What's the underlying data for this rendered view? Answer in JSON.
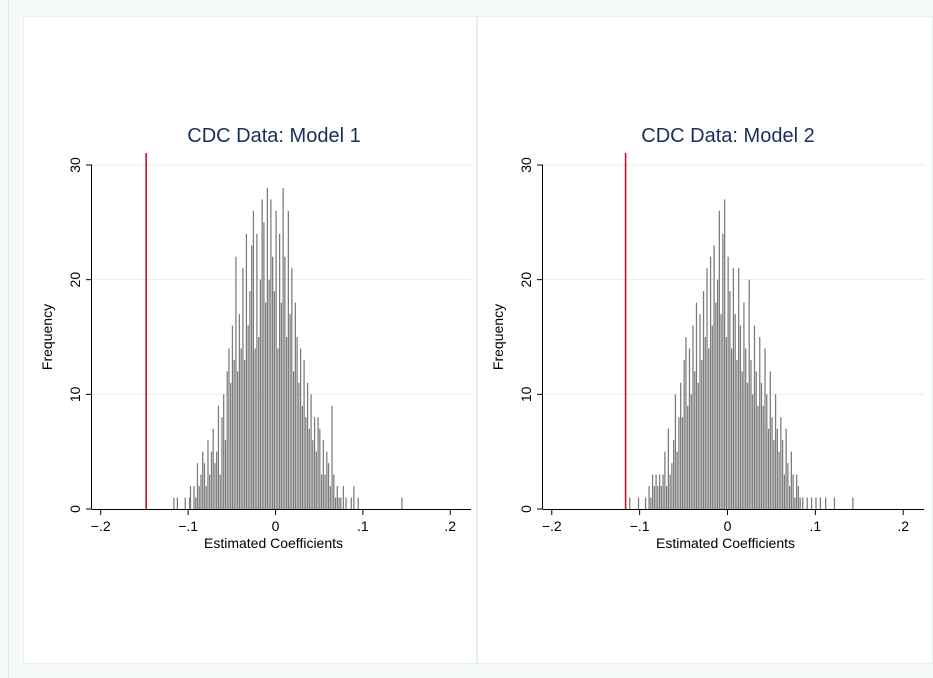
{
  "chart_data": [
    {
      "type": "bar",
      "title": "CDC Data: Model 1",
      "xlabel": "Estimated Coefficients",
      "ylabel": "Frequency",
      "xlim": [
        -0.21,
        0.21
      ],
      "ylim": [
        0,
        30
      ],
      "xticks": [
        -0.2,
        -0.1,
        0,
        0.1,
        0.2
      ],
      "xtick_labels": [
        "−.2",
        "−.1",
        "0",
        ".1",
        ".2"
      ],
      "yticks": [
        0,
        10,
        20,
        30
      ],
      "ytick_labels": [
        "0",
        "10",
        "20",
        "30"
      ],
      "grid": "horizontal",
      "reference_line": {
        "x": -0.148,
        "color": "#c8102e"
      },
      "bin_width": 0.002,
      "bins": [
        [
          -0.116,
          1
        ],
        [
          -0.112,
          1
        ],
        [
          -0.103,
          1
        ],
        [
          -0.098,
          1
        ],
        [
          -0.097,
          2
        ],
        [
          -0.093,
          2
        ],
        [
          -0.091,
          1
        ],
        [
          -0.089,
          4
        ],
        [
          -0.087,
          2
        ],
        [
          -0.085,
          3
        ],
        [
          -0.083,
          5
        ],
        [
          -0.081,
          4
        ],
        [
          -0.079,
          2
        ],
        [
          -0.077,
          6
        ],
        [
          -0.075,
          3
        ],
        [
          -0.073,
          5
        ],
        [
          -0.071,
          7
        ],
        [
          -0.069,
          4
        ],
        [
          -0.067,
          5
        ],
        [
          -0.065,
          9
        ],
        [
          -0.063,
          3
        ],
        [
          -0.061,
          8
        ],
        [
          -0.059,
          10
        ],
        [
          -0.057,
          6
        ],
        [
          -0.055,
          12
        ],
        [
          -0.053,
          14
        ],
        [
          -0.051,
          11
        ],
        [
          -0.049,
          16
        ],
        [
          -0.047,
          13
        ],
        [
          -0.045,
          22
        ],
        [
          -0.043,
          12
        ],
        [
          -0.041,
          17
        ],
        [
          -0.039,
          14
        ],
        [
          -0.037,
          21
        ],
        [
          -0.035,
          13
        ],
        [
          -0.033,
          24
        ],
        [
          -0.031,
          16
        ],
        [
          -0.029,
          19
        ],
        [
          -0.027,
          23
        ],
        [
          -0.025,
          26
        ],
        [
          -0.023,
          14
        ],
        [
          -0.021,
          24
        ],
        [
          -0.019,
          15
        ],
        [
          -0.017,
          20
        ],
        [
          -0.015,
          27
        ],
        [
          -0.013,
          25
        ],
        [
          -0.011,
          18
        ],
        [
          -0.009,
          28
        ],
        [
          -0.007,
          20
        ],
        [
          -0.005,
          27
        ],
        [
          -0.003,
          22
        ],
        [
          -0.001,
          19
        ],
        [
          0.001,
          26
        ],
        [
          0.003,
          14
        ],
        [
          0.005,
          24
        ],
        [
          0.007,
          18
        ],
        [
          0.009,
          28
        ],
        [
          0.011,
          22
        ],
        [
          0.013,
          15
        ],
        [
          0.015,
          26
        ],
        [
          0.017,
          17
        ],
        [
          0.019,
          21
        ],
        [
          0.021,
          12
        ],
        [
          0.023,
          18
        ],
        [
          0.025,
          15
        ],
        [
          0.027,
          11
        ],
        [
          0.029,
          14
        ],
        [
          0.031,
          9
        ],
        [
          0.033,
          13
        ],
        [
          0.035,
          8
        ],
        [
          0.037,
          11
        ],
        [
          0.039,
          7
        ],
        [
          0.041,
          10
        ],
        [
          0.043,
          6
        ],
        [
          0.045,
          8
        ],
        [
          0.047,
          5
        ],
        [
          0.049,
          8
        ],
        [
          0.051,
          7
        ],
        [
          0.053,
          3
        ],
        [
          0.055,
          6
        ],
        [
          0.057,
          3
        ],
        [
          0.059,
          5
        ],
        [
          0.061,
          4
        ],
        [
          0.063,
          2
        ],
        [
          0.065,
          9
        ],
        [
          0.067,
          3
        ],
        [
          0.069,
          1
        ],
        [
          0.071,
          2
        ],
        [
          0.073,
          1
        ],
        [
          0.075,
          1
        ],
        [
          0.078,
          2
        ],
        [
          0.081,
          1
        ],
        [
          0.087,
          1
        ],
        [
          0.09,
          2
        ],
        [
          0.095,
          1
        ],
        [
          0.145,
          1
        ]
      ]
    },
    {
      "type": "bar",
      "title": "CDC Data: Model 2",
      "xlabel": "Estimated Coefficients",
      "ylabel": "Frequency",
      "xlim": [
        -0.21,
        0.21
      ],
      "ylim": [
        0,
        30
      ],
      "xticks": [
        -0.2,
        -0.1,
        0,
        0.1,
        0.2
      ],
      "xtick_labels": [
        "−.2",
        "−.1",
        "0",
        ".1",
        ".2"
      ],
      "yticks": [
        0,
        10,
        20,
        30
      ],
      "ytick_labels": [
        "0",
        "10",
        "20",
        "30"
      ],
      "grid": "horizontal",
      "reference_line": {
        "x": -0.116,
        "color": "#c8102e"
      },
      "bin_width": 0.002,
      "bins": [
        [
          -0.111,
          1
        ],
        [
          -0.101,
          1
        ],
        [
          -0.093,
          1
        ],
        [
          -0.089,
          2
        ],
        [
          -0.087,
          1
        ],
        [
          -0.085,
          3
        ],
        [
          -0.083,
          2
        ],
        [
          -0.081,
          3
        ],
        [
          -0.079,
          2
        ],
        [
          -0.077,
          3
        ],
        [
          -0.075,
          2
        ],
        [
          -0.073,
          3
        ],
        [
          -0.071,
          5
        ],
        [
          -0.069,
          2
        ],
        [
          -0.067,
          7
        ],
        [
          -0.065,
          3
        ],
        [
          -0.063,
          4
        ],
        [
          -0.061,
          6
        ],
        [
          -0.059,
          10
        ],
        [
          -0.057,
          5
        ],
        [
          -0.055,
          8
        ],
        [
          -0.053,
          11
        ],
        [
          -0.051,
          8
        ],
        [
          -0.049,
          13
        ],
        [
          -0.047,
          15
        ],
        [
          -0.045,
          9
        ],
        [
          -0.043,
          14
        ],
        [
          -0.041,
          10
        ],
        [
          -0.039,
          16
        ],
        [
          -0.037,
          12
        ],
        [
          -0.035,
          18
        ],
        [
          -0.033,
          11
        ],
        [
          -0.031,
          17
        ],
        [
          -0.029,
          13
        ],
        [
          -0.027,
          19
        ],
        [
          -0.025,
          15
        ],
        [
          -0.023,
          21
        ],
        [
          -0.021,
          14
        ],
        [
          -0.019,
          22
        ],
        [
          -0.017,
          16
        ],
        [
          -0.015,
          23
        ],
        [
          -0.013,
          18
        ],
        [
          -0.011,
          20
        ],
        [
          -0.009,
          26
        ],
        [
          -0.007,
          17
        ],
        [
          -0.005,
          24
        ],
        [
          -0.003,
          27
        ],
        [
          -0.001,
          15
        ],
        [
          0.001,
          22
        ],
        [
          0.003,
          19
        ],
        [
          0.005,
          14
        ],
        [
          0.007,
          21
        ],
        [
          0.009,
          17
        ],
        [
          0.011,
          13
        ],
        [
          0.013,
          21
        ],
        [
          0.015,
          16
        ],
        [
          0.017,
          12
        ],
        [
          0.019,
          18
        ],
        [
          0.021,
          14
        ],
        [
          0.023,
          11
        ],
        [
          0.025,
          20
        ],
        [
          0.027,
          13
        ],
        [
          0.029,
          10
        ],
        [
          0.031,
          16
        ],
        [
          0.033,
          12
        ],
        [
          0.035,
          9
        ],
        [
          0.037,
          15
        ],
        [
          0.039,
          11
        ],
        [
          0.041,
          9
        ],
        [
          0.043,
          14
        ],
        [
          0.045,
          10
        ],
        [
          0.047,
          7
        ],
        [
          0.049,
          12
        ],
        [
          0.051,
          8
        ],
        [
          0.053,
          6
        ],
        [
          0.055,
          10
        ],
        [
          0.057,
          7
        ],
        [
          0.059,
          5
        ],
        [
          0.061,
          8
        ],
        [
          0.063,
          6
        ],
        [
          0.065,
          3
        ],
        [
          0.067,
          7
        ],
        [
          0.069,
          4
        ],
        [
          0.071,
          2
        ],
        [
          0.073,
          5
        ],
        [
          0.075,
          3
        ],
        [
          0.077,
          1
        ],
        [
          0.079,
          3
        ],
        [
          0.081,
          2
        ],
        [
          0.083,
          1
        ],
        [
          0.086,
          1
        ],
        [
          0.091,
          1
        ],
        [
          0.096,
          1
        ],
        [
          0.101,
          1
        ],
        [
          0.106,
          1
        ],
        [
          0.112,
          1
        ],
        [
          0.122,
          1
        ],
        [
          0.143,
          1
        ]
      ]
    }
  ]
}
